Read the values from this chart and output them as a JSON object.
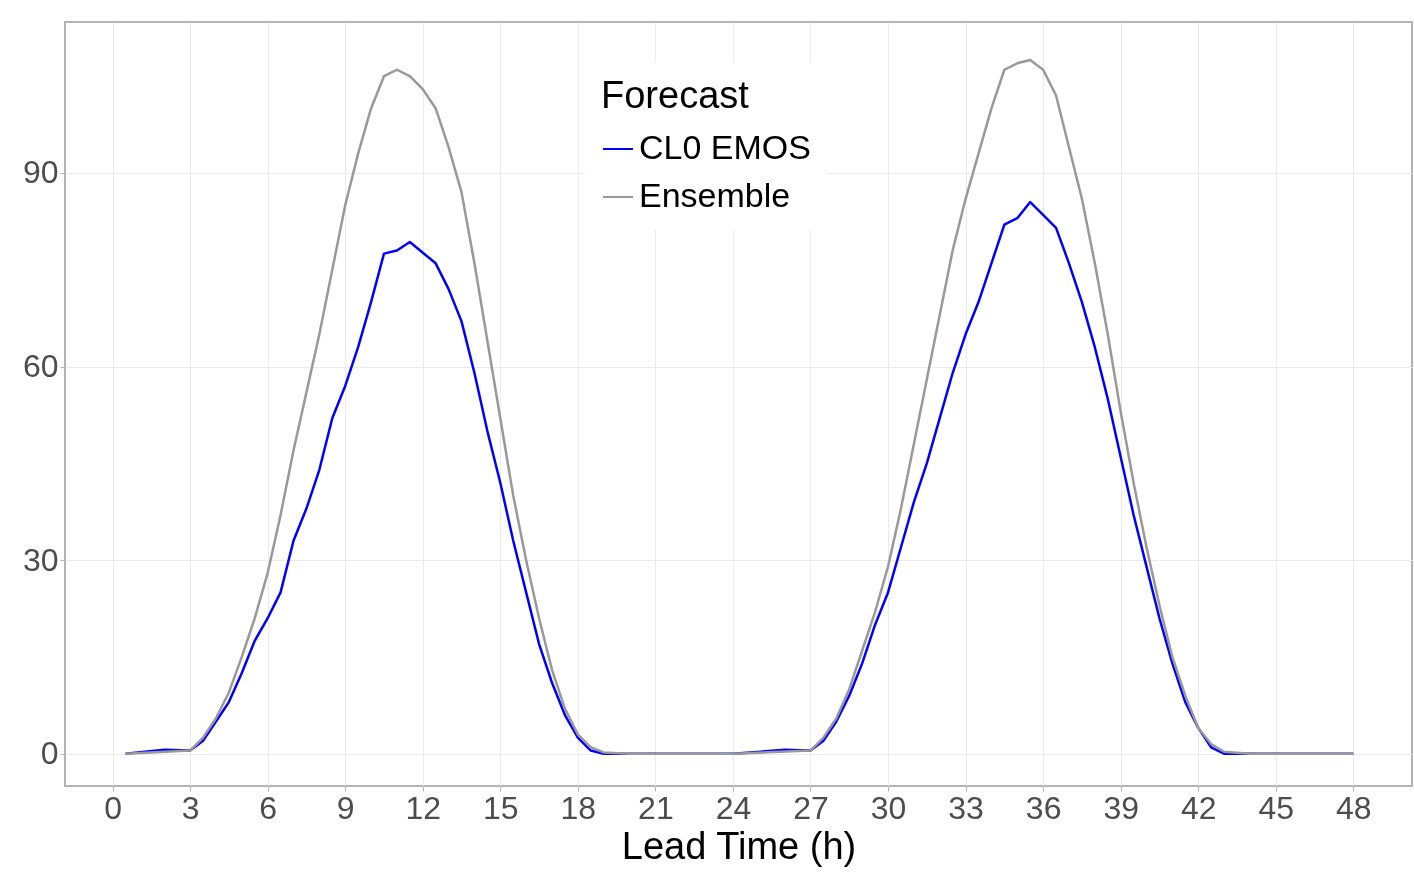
{
  "chart_data": {
    "type": "line",
    "xlabel": "Lead Time (h)",
    "legend_title": "Forecast",
    "legend": "top",
    "grid": true,
    "xlim": [
      -1.84,
      50.27
    ],
    "ylim": [
      -5,
      113.4
    ],
    "xticks": [
      0,
      3,
      6,
      9,
      12,
      15,
      18,
      21,
      24,
      27,
      30,
      33,
      36,
      39,
      42,
      45,
      48
    ],
    "yticks": [
      0,
      30,
      60,
      90
    ],
    "series": [
      {
        "name": "CL0 EMOS",
        "color": "#0000ff",
        "x": [
          0.5,
          2,
          3,
          3.5,
          4,
          4.5,
          5,
          5.5,
          6,
          6.5,
          7,
          7.5,
          8,
          8.5,
          9,
          9.5,
          10,
          10.5,
          11,
          11.5,
          12.5,
          13,
          13.5,
          14,
          14.5,
          15,
          15.5,
          16,
          16.5,
          17,
          17.5,
          18,
          18.5,
          19,
          21,
          24,
          26,
          27,
          27.5,
          28,
          28.5,
          29,
          29.5,
          30,
          30.5,
          31,
          31.5,
          32,
          32.5,
          33,
          33.5,
          34,
          34.5,
          35,
          35.5,
          36,
          36.5,
          37,
          37.5,
          38,
          38.5,
          39,
          39.5,
          40,
          40.5,
          41,
          41.5,
          42,
          42.5,
          43,
          45,
          48
        ],
        "values": [
          0,
          0.6,
          0.5,
          2,
          5,
          8,
          12.5,
          17.5,
          21,
          25,
          33,
          38,
          44,
          52,
          57,
          63,
          70,
          77.5,
          78,
          79.3,
          76,
          72,
          67,
          59,
          50,
          42,
          33,
          25,
          17,
          11,
          6,
          2.5,
          0.5,
          0,
          0,
          0,
          0.6,
          0.5,
          2,
          5,
          9,
          14,
          20,
          25,
          32,
          39,
          45,
          52,
          59,
          65,
          70,
          76,
          82,
          83,
          85.5,
          83.5,
          81.5,
          76,
          70,
          63,
          55,
          46,
          37,
          29,
          21,
          14,
          8,
          4,
          1,
          0,
          0,
          0
        ]
      },
      {
        "name": "Ensemble",
        "color": "#999999",
        "x": [
          0.5,
          3,
          3.5,
          4,
          4.5,
          5,
          5.5,
          6,
          6.5,
          7,
          7.5,
          8,
          8.5,
          9,
          9.5,
          10,
          10.5,
          11,
          11.5,
          12,
          12.5,
          13,
          13.5,
          14,
          14.5,
          15,
          15.5,
          16,
          16.5,
          17,
          17.5,
          18,
          18.5,
          19,
          20,
          24,
          27,
          27.5,
          28,
          28.5,
          29,
          29.5,
          30,
          30.5,
          31,
          31.5,
          32,
          32.5,
          33,
          33.5,
          34,
          34.5,
          35,
          35.5,
          36,
          36.5,
          37,
          37.5,
          38,
          38.5,
          39,
          39.5,
          40,
          40.5,
          41,
          41.5,
          42,
          42.5,
          43,
          44,
          48
        ],
        "values": [
          0,
          0.5,
          2.5,
          5.5,
          9.5,
          15,
          21,
          28,
          37,
          47,
          56,
          65,
          75,
          85,
          93,
          100,
          105,
          106,
          105,
          103,
          100,
          94,
          87,
          76,
          64,
          52,
          40,
          30,
          21,
          13,
          7,
          3,
          1,
          0.2,
          0,
          0,
          0.5,
          2.5,
          5.5,
          10,
          16,
          22,
          29,
          38,
          48,
          58,
          68,
          78,
          86,
          93,
          100,
          106,
          107,
          107.5,
          106,
          102,
          94,
          86,
          76,
          65,
          53,
          42,
          32,
          23,
          15,
          9,
          4,
          1.5,
          0.3,
          0,
          0
        ]
      }
    ]
  }
}
